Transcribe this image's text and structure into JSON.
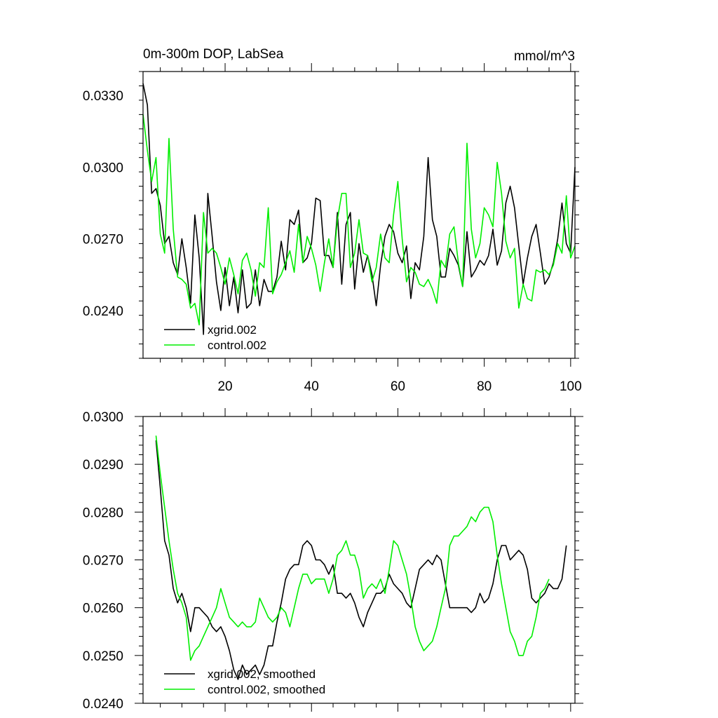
{
  "chart_data": [
    {
      "type": "line",
      "title": "0m-300m DOP, LabSea",
      "units": "mmol/m^3",
      "xlabel": "",
      "ylabel": "",
      "xlim": [
        1,
        101
      ],
      "ylim": [
        0.022,
        0.034
      ],
      "yticks": [
        "0.0240",
        "0.0270",
        "0.0300",
        "0.0330"
      ],
      "xticks": [
        "20",
        "40",
        "60",
        "80",
        "100"
      ],
      "legend_position": "bottom-left",
      "series": [
        {
          "name": "xgrid.002",
          "color": "#000000",
          "values": [
            0.0335,
            0.0326,
            0.0289,
            0.0291,
            0.0284,
            0.0268,
            0.0271,
            0.026,
            0.0255,
            0.027,
            0.0258,
            0.0243,
            0.028,
            0.0262,
            0.023,
            0.0289,
            0.0271,
            0.0252,
            0.024,
            0.0258,
            0.0242,
            0.0254,
            0.0239,
            0.0257,
            0.0241,
            0.0243,
            0.0257,
            0.0242,
            0.0253,
            0.0248,
            0.0248,
            0.0254,
            0.0269,
            0.0257,
            0.0278,
            0.0276,
            0.0282,
            0.026,
            0.0262,
            0.0268,
            0.0287,
            0.0286,
            0.0263,
            0.0263,
            0.0258,
            0.0281,
            0.0251,
            0.0276,
            0.0281,
            0.0249,
            0.0268,
            0.0256,
            0.0263,
            0.0255,
            0.0242,
            0.0259,
            0.0271,
            0.0276,
            0.0273,
            0.0264,
            0.026,
            0.0267,
            0.0245,
            0.026,
            0.0257,
            0.0271,
            0.0304,
            0.0278,
            0.0271,
            0.0254,
            0.0254,
            0.0266,
            0.0263,
            0.0259,
            0.025,
            0.0273,
            0.0254,
            0.0257,
            0.0261,
            0.0259,
            0.0263,
            0.0274,
            0.0259,
            0.0265,
            0.0285,
            0.0292,
            0.0283,
            0.0267,
            0.0251,
            0.0262,
            0.0271,
            0.0276,
            0.0264,
            0.0251,
            0.0254,
            0.026,
            0.027,
            0.0285,
            0.0268,
            0.0264,
            0.03
          ]
        },
        {
          "name": "control.002",
          "color": "#00ee00",
          "values": [
            0.0322,
            0.0307,
            0.0294,
            0.0304,
            0.0272,
            0.0264,
            0.0312,
            0.0274,
            0.0254,
            0.0253,
            0.0251,
            0.0241,
            0.0243,
            0.0234,
            0.0281,
            0.0264,
            0.0266,
            0.0264,
            0.0258,
            0.0251,
            0.0262,
            0.0255,
            0.0247,
            0.0261,
            0.0264,
            0.0257,
            0.0246,
            0.026,
            0.0258,
            0.0283,
            0.0247,
            0.0252,
            0.0255,
            0.026,
            0.0265,
            0.0256,
            0.0276,
            0.026,
            0.0271,
            0.0266,
            0.0259,
            0.0248,
            0.026,
            0.027,
            0.0258,
            0.0278,
            0.0289,
            0.0289,
            0.0258,
            0.0264,
            0.0278,
            0.0264,
            0.0263,
            0.0252,
            0.0258,
            0.0272,
            0.0262,
            0.026,
            0.028,
            0.0294,
            0.027,
            0.0252,
            0.0258,
            0.0256,
            0.0251,
            0.025,
            0.0253,
            0.0249,
            0.0243,
            0.0261,
            0.0258,
            0.0272,
            0.0275,
            0.026,
            0.025,
            0.031,
            0.0274,
            0.0262,
            0.0268,
            0.0283,
            0.028,
            0.0275,
            0.0302,
            0.0289,
            0.0269,
            0.0262,
            0.0266,
            0.0241,
            0.0251,
            0.0245,
            0.0244,
            0.0257,
            0.0256,
            0.0257,
            0.0255,
            0.0259,
            0.0268,
            0.0264,
            0.0288,
            0.0262,
            0.0267
          ]
        }
      ]
    },
    {
      "type": "line",
      "title": "",
      "xlabel": "",
      "ylabel": "",
      "xlim": [
        1,
        101
      ],
      "ylim": [
        0.024,
        0.03
      ],
      "yticks": [
        "0.0240",
        "0.0250",
        "0.0260",
        "0.0270",
        "0.0280",
        "0.0290",
        "0.0300"
      ],
      "legend_position": "bottom-left",
      "series": [
        {
          "name": "xgrid.002, smoothed",
          "color": "#000000",
          "x_start": 4,
          "values": [
            0.0295,
            0.0285,
            0.0274,
            0.0271,
            0.0264,
            0.0261,
            0.0263,
            0.026,
            0.0255,
            0.026,
            0.026,
            0.0259,
            0.0258,
            0.0256,
            0.0255,
            0.0256,
            0.0254,
            0.0251,
            0.0247,
            0.0245,
            0.0248,
            0.0246,
            0.0247,
            0.0248,
            0.0246,
            0.0248,
            0.0252,
            0.0252,
            0.0257,
            0.0261,
            0.0266,
            0.0268,
            0.0269,
            0.0269,
            0.0273,
            0.0274,
            0.0273,
            0.027,
            0.027,
            0.0269,
            0.0267,
            0.0269,
            0.0263,
            0.0263,
            0.0262,
            0.0263,
            0.0261,
            0.0258,
            0.0256,
            0.0259,
            0.0261,
            0.0263,
            0.0263,
            0.0264,
            0.0267,
            0.0265,
            0.0264,
            0.0263,
            0.0261,
            0.026,
            0.0264,
            0.0268,
            0.0269,
            0.027,
            0.0269,
            0.0271,
            0.027,
            0.0265,
            0.026,
            0.026,
            0.026,
            0.026,
            0.026,
            0.0259,
            0.026,
            0.0263,
            0.0261,
            0.0262,
            0.0265,
            0.027,
            0.0273,
            0.0273,
            0.027,
            0.0271,
            0.0272,
            0.0271,
            0.0268,
            0.0262,
            0.0261,
            0.0262,
            0.0263,
            0.0265,
            0.0264,
            0.0264,
            0.0266,
            0.0273
          ]
        },
        {
          "name": "control.002, smoothed",
          "color": "#00ee00",
          "x_start": 4,
          "values": [
            0.0296,
            0.0288,
            0.0281,
            0.0274,
            0.0268,
            0.0263,
            0.0261,
            0.0258,
            0.0249,
            0.0251,
            0.0252,
            0.0254,
            0.0256,
            0.0258,
            0.026,
            0.0264,
            0.0261,
            0.0258,
            0.0257,
            0.0256,
            0.0257,
            0.0256,
            0.0256,
            0.0257,
            0.0262,
            0.026,
            0.0258,
            0.0257,
            0.0258,
            0.026,
            0.0259,
            0.0256,
            0.026,
            0.0264,
            0.0267,
            0.0267,
            0.0265,
            0.0266,
            0.0266,
            0.0266,
            0.0263,
            0.0266,
            0.0271,
            0.0272,
            0.0274,
            0.0271,
            0.0271,
            0.0268,
            0.0262,
            0.0264,
            0.0265,
            0.0264,
            0.0266,
            0.0263,
            0.0268,
            0.0274,
            0.0273,
            0.027,
            0.0267,
            0.0262,
            0.0256,
            0.0253,
            0.0251,
            0.0252,
            0.0253,
            0.0256,
            0.026,
            0.0264,
            0.0273,
            0.0275,
            0.0275,
            0.0276,
            0.0277,
            0.0279,
            0.0278,
            0.028,
            0.0281,
            0.0281,
            0.0278,
            0.0271,
            0.0265,
            0.026,
            0.0255,
            0.0253,
            0.025,
            0.025,
            0.0253,
            0.0254,
            0.0258,
            0.0263,
            0.0264,
            0.0266
          ]
        }
      ]
    }
  ]
}
